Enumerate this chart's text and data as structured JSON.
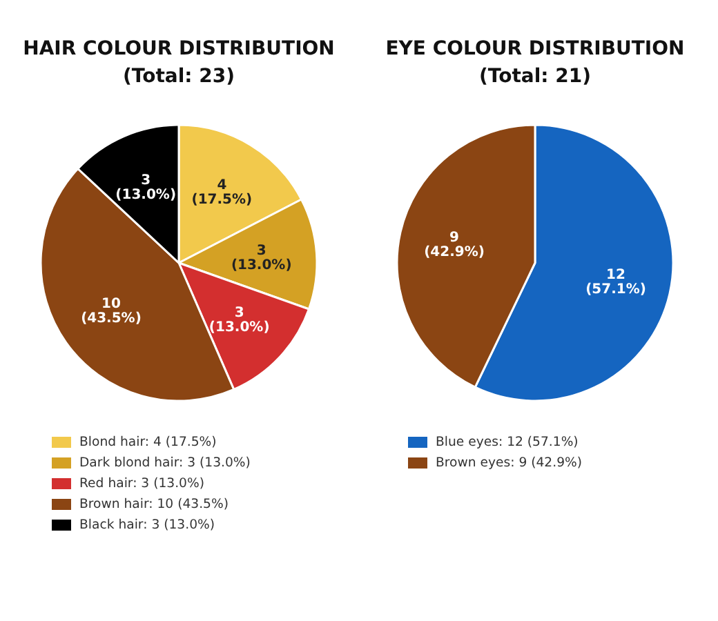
{
  "chart_data": [
    {
      "type": "pie",
      "title": "HAIR COLOUR DISTRIBUTION\n(Total: 23)",
      "categories": [
        "Blond hair: 4 (17.5%)",
        "Dark blond hair: 3 (13.0%)",
        "Red hair: 3 (13.0%)",
        "Brown hair: 10 (43.5%)",
        "Black hair: 3 (13.0%)"
      ],
      "values": [
        4,
        3,
        3,
        10,
        3
      ],
      "colors": [
        "#f2c94c",
        "#d4a124",
        "#d32f2f",
        "#8b4513",
        "#000000"
      ],
      "value_labels": [
        "4\n(17.5%)",
        "3\n(13.0%)",
        "3\n(13.0%)",
        "10\n(43.5%)",
        "3\n(13.0%)"
      ],
      "legend": "bottom"
    },
    {
      "type": "pie",
      "title": "EYE COLOUR DISTRIBUTION\n(Total: 21)",
      "categories": [
        "Blue eyes: 12 (57.1%)",
        "Brown eyes: 9 (42.9%)"
      ],
      "values": [
        12,
        9
      ],
      "colors": [
        "#1565c0",
        "#8b4513"
      ],
      "value_labels": [
        "12\n(57.1%)",
        "9\n(42.9%)"
      ],
      "legend": "bottom"
    }
  ]
}
